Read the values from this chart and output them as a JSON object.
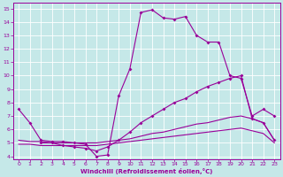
{
  "bg_color": "#c5e8e8",
  "line_color": "#990099",
  "grid_color": "#ffffff",
  "xlabel": "Windchill (Refroidissement éolien,°C)",
  "xlim": [
    -0.5,
    23.5
  ],
  "ylim": [
    3.8,
    15.4
  ],
  "xticks": [
    0,
    1,
    2,
    3,
    4,
    5,
    6,
    7,
    8,
    9,
    10,
    11,
    12,
    13,
    14,
    15,
    16,
    17,
    18,
    19,
    20,
    21,
    22,
    23
  ],
  "yticks": [
    4,
    5,
    6,
    7,
    8,
    9,
    10,
    11,
    12,
    13,
    14,
    15
  ],
  "c1x": [
    0,
    1,
    2,
    3,
    4,
    5,
    6,
    7,
    8,
    9,
    10,
    11,
    12,
    13,
    14,
    15,
    16,
    17,
    18,
    19,
    20,
    21,
    22,
    23
  ],
  "c1y": [
    7.5,
    6.5,
    5.2,
    5.1,
    5.1,
    5.0,
    4.9,
    4.0,
    4.1,
    8.5,
    10.5,
    14.7,
    14.9,
    14.3,
    14.2,
    14.4,
    13.0,
    12.5,
    12.5,
    10.0,
    9.8,
    7.0,
    7.5,
    7.0
  ],
  "c2x": [
    2,
    3,
    4,
    5,
    6,
    7,
    8,
    9,
    10,
    11,
    12,
    13,
    14,
    15,
    16,
    17,
    18,
    19,
    20,
    21,
    22,
    23
  ],
  "c2y": [
    5.0,
    5.0,
    4.8,
    4.7,
    4.6,
    4.4,
    4.7,
    5.2,
    5.8,
    6.5,
    7.0,
    7.5,
    8.0,
    8.3,
    8.8,
    9.2,
    9.5,
    9.8,
    10.0,
    6.8,
    6.5,
    5.2
  ],
  "c3x": [
    0,
    1,
    2,
    3,
    4,
    5,
    6,
    7,
    8,
    9,
    10,
    11,
    12,
    13,
    14,
    15,
    16,
    17,
    18,
    19,
    20,
    21,
    22,
    23
  ],
  "c3y": [
    5.2,
    5.1,
    5.1,
    5.0,
    5.0,
    5.0,
    5.0,
    5.0,
    5.1,
    5.2,
    5.3,
    5.5,
    5.7,
    5.8,
    6.0,
    6.2,
    6.4,
    6.5,
    6.7,
    6.9,
    7.0,
    6.8,
    6.5,
    5.2
  ],
  "c4x": [
    0,
    1,
    2,
    3,
    4,
    5,
    6,
    7,
    8,
    9,
    10,
    11,
    12,
    13,
    14,
    15,
    16,
    17,
    18,
    19,
    20,
    21,
    22,
    23
  ],
  "c4y": [
    4.9,
    4.9,
    4.8,
    4.8,
    4.8,
    4.8,
    4.8,
    4.8,
    4.9,
    5.0,
    5.1,
    5.2,
    5.3,
    5.4,
    5.5,
    5.6,
    5.7,
    5.8,
    5.9,
    6.0,
    6.1,
    5.9,
    5.7,
    5.0
  ]
}
